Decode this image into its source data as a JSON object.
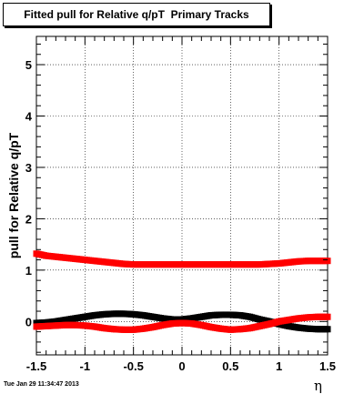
{
  "canvas": {
    "title": "Fitted pull for Relative q/pT  Primary Tracks",
    "timestamp": "Tue Jan 29 11:34:47 2013"
  },
  "chart_data": {
    "type": "scatter",
    "title": "Fitted pull for Relative q/pT  Primary Tracks",
    "xlabel": "η",
    "ylabel": "pull for Relative q/pT",
    "xlim": [
      -1.5,
      1.5
    ],
    "ylim": [
      -0.65,
      5.55
    ],
    "grid": true,
    "x_ticks": [
      -1.5,
      -1,
      -0.5,
      0,
      0.5,
      1,
      1.5
    ],
    "x_tick_labels": [
      "-1.5",
      "-1",
      "-0.5",
      "0",
      "0.5",
      "1",
      "1.5"
    ],
    "y_ticks": [
      0,
      1,
      2,
      3,
      4,
      5
    ],
    "y_tick_labels": [
      "0",
      "1",
      "2",
      "3",
      "4",
      "5"
    ],
    "x": [
      -1.5,
      -1.4,
      -1.3,
      -1.2,
      -1.1,
      -1.0,
      -0.9,
      -0.8,
      -0.7,
      -0.6,
      -0.5,
      -0.4,
      -0.3,
      -0.2,
      -0.1,
      0.0,
      0.1,
      0.2,
      0.3,
      0.4,
      0.5,
      0.6,
      0.7,
      0.8,
      0.9,
      1.0,
      1.1,
      1.2,
      1.3,
      1.4,
      1.5
    ],
    "series": [
      {
        "color": "#ff0000",
        "values": [
          1.32,
          1.28,
          1.26,
          1.24,
          1.22,
          1.2,
          1.18,
          1.16,
          1.14,
          1.12,
          1.11,
          1.11,
          1.11,
          1.11,
          1.11,
          1.11,
          1.11,
          1.11,
          1.11,
          1.11,
          1.11,
          1.11,
          1.11,
          1.11,
          1.12,
          1.13,
          1.15,
          1.17,
          1.18,
          1.18,
          1.18
        ]
      },
      {
        "color": "#000000",
        "values": [
          -0.03,
          -0.02,
          0.0,
          0.03,
          0.06,
          0.09,
          0.12,
          0.14,
          0.15,
          0.15,
          0.14,
          0.12,
          0.09,
          0.06,
          0.04,
          0.04,
          0.06,
          0.09,
          0.12,
          0.13,
          0.13,
          0.12,
          0.09,
          0.04,
          0.0,
          -0.05,
          -0.09,
          -0.12,
          -0.14,
          -0.15,
          -0.15
        ]
      },
      {
        "color": "#ff0000",
        "values": [
          -0.1,
          -0.09,
          -0.08,
          -0.07,
          -0.07,
          -0.08,
          -0.1,
          -0.13,
          -0.15,
          -0.16,
          -0.16,
          -0.14,
          -0.11,
          -0.07,
          -0.04,
          -0.03,
          -0.04,
          -0.07,
          -0.11,
          -0.14,
          -0.16,
          -0.15,
          -0.13,
          -0.09,
          -0.05,
          0.0,
          0.03,
          0.06,
          0.08,
          0.09,
          0.09
        ]
      }
    ]
  }
}
